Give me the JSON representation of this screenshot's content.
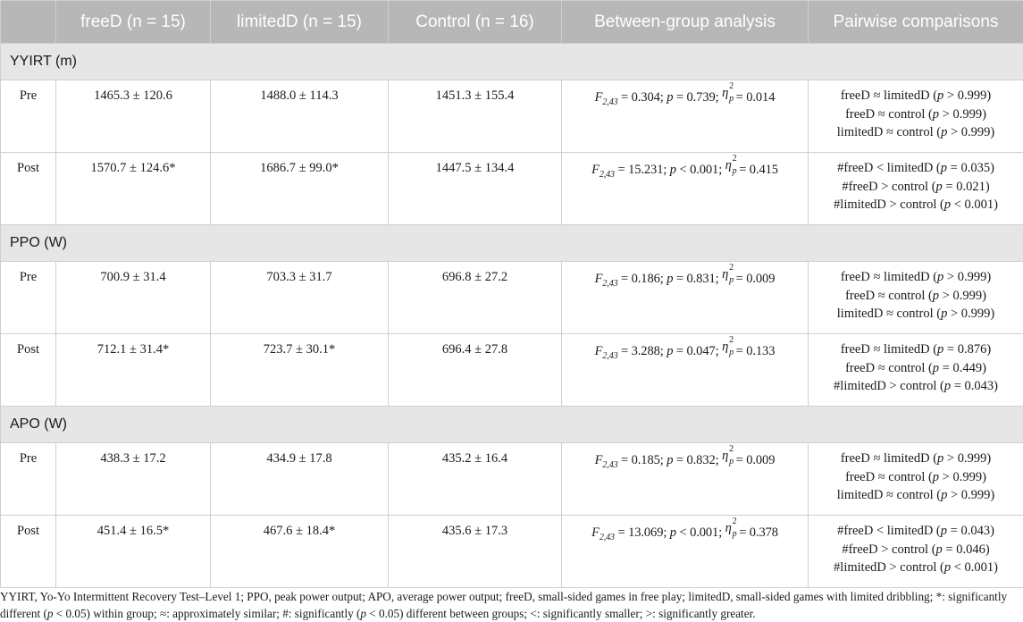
{
  "table": {
    "headers": [
      "",
      "freeD (n = 15)",
      "limitedD (n = 15)",
      "Control (n = 16)",
      "Between-group analysis",
      "Pairwise comparisons"
    ],
    "sections": [
      {
        "label": "YYIRT (m)",
        "rows": [
          {
            "time": "Pre",
            "freeD": "1465.3 ± 120.6",
            "limitedD": "1488.0 ± 114.3",
            "control": "1451.3 ± 155.4",
            "stat": {
              "F_label": "F",
              "F_sub": "2,43",
              "F_value": " = 0.304; ",
              "p_label": "p",
              "p_value": " = 0.739; ",
              "eta_label": "η",
              "eta_sup": "2",
              "eta_sub": "p",
              "eta_value": " = 0.014"
            },
            "pairs": [
              {
                "a": "freeD ≈ limitedD (",
                "p": "p",
                "b": " > 0.999)"
              },
              {
                "a": "freeD ≈ control (",
                "p": "p",
                "b": " > 0.999)"
              },
              {
                "a": "limitedD ≈ control (",
                "p": "p",
                "b": " > 0.999)"
              }
            ]
          },
          {
            "time": "Post",
            "freeD": "1570.7 ± 124.6*",
            "limitedD": "1686.7 ± 99.0*",
            "control": "1447.5 ± 134.4",
            "stat": {
              "F_label": "F",
              "F_sub": "2,43",
              "F_value": " = 15.231; ",
              "p_label": "p",
              "p_value": " < 0.001; ",
              "eta_label": "η",
              "eta_sup": "2",
              "eta_sub": "p",
              "eta_value": " = 0.415"
            },
            "pairs": [
              {
                "a": "#freeD < limitedD (",
                "p": "p",
                "b": " = 0.035)"
              },
              {
                "a": "#freeD > control (",
                "p": "p",
                "b": " = 0.021)"
              },
              {
                "a": "#limitedD > control (",
                "p": "p",
                "b": " < 0.001)"
              }
            ]
          }
        ]
      },
      {
        "label": "PPO (W)",
        "rows": [
          {
            "time": "Pre",
            "freeD": "700.9 ± 31.4",
            "limitedD": "703.3 ± 31.7",
            "control": "696.8 ± 27.2",
            "stat": {
              "F_label": "F",
              "F_sub": "2,43",
              "F_value": " = 0.186; ",
              "p_label": "p",
              "p_value": " = 0.831; ",
              "eta_label": "η",
              "eta_sup": "2",
              "eta_sub": "p",
              "eta_value": " = 0.009"
            },
            "pairs": [
              {
                "a": "freeD ≈ limitedD (",
                "p": "p",
                "b": " > 0.999)"
              },
              {
                "a": "freeD ≈ control (",
                "p": "p",
                "b": " > 0.999)"
              },
              {
                "a": "limitedD ≈ control (",
                "p": "p",
                "b": " > 0.999)"
              }
            ]
          },
          {
            "time": "Post",
            "freeD": "712.1 ± 31.4*",
            "limitedD": "723.7 ± 30.1*",
            "control": "696.4 ± 27.8",
            "stat": {
              "F_label": "F",
              "F_sub": "2,43",
              "F_value": " = 3.288; ",
              "p_label": "p",
              "p_value": " = 0.047; ",
              "eta_label": "η",
              "eta_sup": "2",
              "eta_sub": "p",
              "eta_value": " = 0.133"
            },
            "pairs": [
              {
                "a": "freeD ≈ limitedD (",
                "p": "p",
                "b": " = 0.876)"
              },
              {
                "a": "freeD ≈ control (",
                "p": "p",
                "b": " = 0.449)"
              },
              {
                "a": "#limitedD > control (",
                "p": "p",
                "b": " = 0.043)"
              }
            ]
          }
        ]
      },
      {
        "label": "APO (W)",
        "rows": [
          {
            "time": "Pre",
            "freeD": "438.3 ± 17.2",
            "limitedD": "434.9 ± 17.8",
            "control": "435.2 ± 16.4",
            "stat": {
              "F_label": "F",
              "F_sub": "2,43",
              "F_value": " = 0.185; ",
              "p_label": "p",
              "p_value": " = 0.832; ",
              "eta_label": "η",
              "eta_sup": "2",
              "eta_sub": "p",
              "eta_value": " = 0.009"
            },
            "pairs": [
              {
                "a": "freeD ≈ limitedD (",
                "p": "p",
                "b": " > 0.999)"
              },
              {
                "a": "freeD ≈ control (",
                "p": "p",
                "b": " > 0.999)"
              },
              {
                "a": "limitedD ≈ control (",
                "p": "p",
                "b": " > 0.999)"
              }
            ]
          },
          {
            "time": "Post",
            "freeD": "451.4 ± 16.5*",
            "limitedD": "467.6 ± 18.4*",
            "control": "435.6 ± 17.3",
            "stat": {
              "F_label": "F",
              "F_sub": "2,43",
              "F_value": " = 13.069; ",
              "p_label": "p",
              "p_value": " < 0.001; ",
              "eta_label": "η",
              "eta_sup": "2",
              "eta_sub": "p",
              "eta_value": " = 0.378"
            },
            "pairs": [
              {
                "a": "#freeD < limitedD (",
                "p": "p",
                "b": " = 0.043)"
              },
              {
                "a": "#freeD > control (",
                "p": "p",
                "b": " = 0.046)"
              },
              {
                "a": "#limitedD > control (",
                "p": "p",
                "b": " < 0.001)"
              }
            ]
          }
        ]
      }
    ]
  },
  "footnote": [
    {
      "t": "YYIRT, Yo-Yo Intermittent Recovery Test–Level 1; PPO, peak power output; APO, average power output; freeD, small-sided games in free play; limitedD, small-sided games with limited dribbling; *: significantly different ("
    },
    {
      "t": "p",
      "i": true
    },
    {
      "t": " < 0.05) within group; ≈: approximately similar; #: significantly ("
    },
    {
      "t": "p",
      "i": true
    },
    {
      "t": " < 0.05) different between groups; <: significantly smaller; >: significantly greater."
    }
  ]
}
